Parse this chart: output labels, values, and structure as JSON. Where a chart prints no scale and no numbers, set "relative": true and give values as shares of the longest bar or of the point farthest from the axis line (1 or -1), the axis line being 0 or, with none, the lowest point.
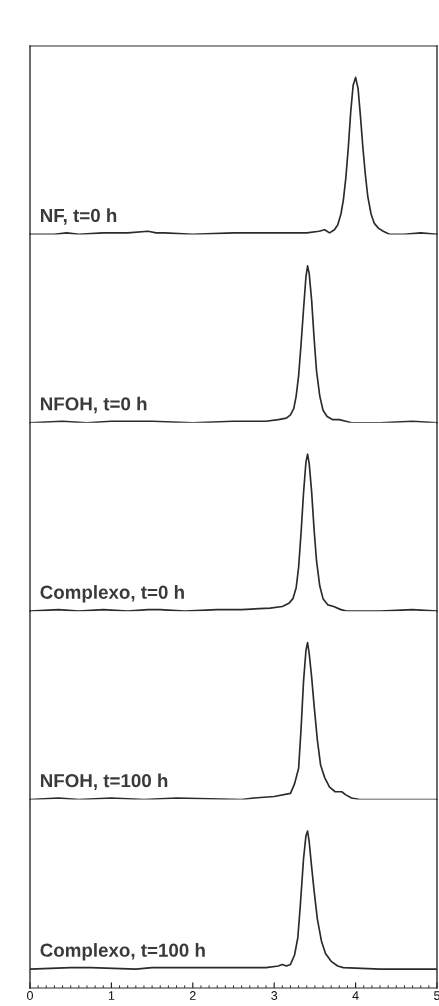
{
  "chart_data": [
    {
      "type": "line",
      "relative": true,
      "xlim": [
        0,
        5
      ],
      "tick_labels": false,
      "annotations": [
        "NF, t=0 h"
      ],
      "x": [
        0,
        0.3,
        0.45,
        0.6,
        0.9,
        1.2,
        1.45,
        1.55,
        1.65,
        2.0,
        2.5,
        3.0,
        3.4,
        3.55,
        3.62,
        3.68,
        3.74,
        3.78,
        3.82,
        3.85,
        3.88,
        3.91,
        3.94,
        3.97,
        4.0,
        4.03,
        4.06,
        4.09,
        4.12,
        4.15,
        4.19,
        4.23,
        4.28,
        4.34,
        4.42,
        4.6,
        4.8,
        5.0
      ],
      "series": [
        {
          "color": "#2b2b2b",
          "values": [
            0.0,
            0.0,
            0.01,
            0.0,
            0.01,
            0.01,
            0.02,
            0.01,
            0.01,
            0.0,
            0.01,
            0.01,
            0.01,
            0.02,
            0.03,
            0.01,
            0.03,
            0.06,
            0.13,
            0.22,
            0.36,
            0.55,
            0.78,
            0.95,
            1.0,
            0.93,
            0.75,
            0.55,
            0.38,
            0.24,
            0.13,
            0.07,
            0.04,
            0.02,
            0.0,
            0.0,
            0.01,
            0.0
          ]
        }
      ]
    },
    {
      "type": "line",
      "relative": true,
      "xlim": [
        0,
        5
      ],
      "tick_labels": false,
      "annotations": [
        "NFOH, t=0 h"
      ],
      "x": [
        0,
        0.4,
        0.7,
        1.0,
        1.5,
        2.0,
        2.5,
        2.9,
        3.05,
        3.15,
        3.2,
        3.24,
        3.27,
        3.3,
        3.33,
        3.36,
        3.39,
        3.41,
        3.43,
        3.46,
        3.49,
        3.52,
        3.56,
        3.6,
        3.65,
        3.72,
        3.8,
        3.88,
        3.95,
        4.3,
        4.7,
        5.0
      ],
      "series": [
        {
          "color": "#2b2b2b",
          "values": [
            0.0,
            0.01,
            0.0,
            0.01,
            0.01,
            0.0,
            0.01,
            0.01,
            0.02,
            0.03,
            0.05,
            0.09,
            0.17,
            0.3,
            0.5,
            0.72,
            0.93,
            1.0,
            0.95,
            0.78,
            0.54,
            0.33,
            0.17,
            0.08,
            0.04,
            0.02,
            0.02,
            0.01,
            0.0,
            0.0,
            0.01,
            0.0
          ]
        }
      ]
    },
    {
      "type": "line",
      "relative": true,
      "xlim": [
        0,
        5
      ],
      "tick_labels": false,
      "annotations": [
        "Complexo, t=0 h"
      ],
      "x": [
        0,
        0.35,
        0.6,
        0.9,
        1.2,
        1.45,
        1.6,
        1.9,
        2.3,
        2.6,
        2.95,
        3.1,
        3.18,
        3.23,
        3.27,
        3.3,
        3.33,
        3.36,
        3.39,
        3.41,
        3.43,
        3.46,
        3.49,
        3.52,
        3.56,
        3.6,
        3.66,
        3.73,
        3.82,
        3.9,
        4.3,
        4.7,
        5.0
      ],
      "series": [
        {
          "color": "#2b2b2b",
          "values": [
            0.0,
            0.01,
            0.0,
            0.01,
            0.0,
            0.01,
            0.01,
            0.0,
            0.01,
            0.01,
            0.02,
            0.03,
            0.05,
            0.08,
            0.15,
            0.28,
            0.5,
            0.75,
            0.95,
            1.0,
            0.94,
            0.76,
            0.52,
            0.32,
            0.16,
            0.08,
            0.04,
            0.03,
            0.01,
            0.0,
            0.0,
            0.01,
            0.0
          ]
        }
      ]
    },
    {
      "type": "line",
      "relative": true,
      "xlim": [
        0,
        5
      ],
      "tick_labels": false,
      "annotations": [
        "NFOH, t=100 h"
      ],
      "x": [
        0,
        0.35,
        0.6,
        1.0,
        1.4,
        1.8,
        2.6,
        2.75,
        3.0,
        3.2,
        3.25,
        3.3,
        3.33,
        3.36,
        3.39,
        3.41,
        3.43,
        3.46,
        3.49,
        3.53,
        3.57,
        3.62,
        3.68,
        3.75,
        3.83,
        3.88,
        3.95,
        4.05,
        4.5,
        5.0
      ],
      "series": [
        {
          "color": "#2b2b2b",
          "values": [
            0.0,
            0.01,
            0.0,
            0.01,
            0.0,
            0.01,
            0.0,
            0.01,
            0.02,
            0.04,
            0.1,
            0.2,
            0.45,
            0.75,
            0.95,
            1.0,
            0.93,
            0.78,
            0.6,
            0.38,
            0.22,
            0.14,
            0.08,
            0.05,
            0.05,
            0.03,
            0.01,
            0.0,
            0.0,
            0.0
          ]
        }
      ]
    },
    {
      "type": "line",
      "relative": true,
      "xlim": [
        0,
        5
      ],
      "tick_labels": "x",
      "annotations": [
        "Complexo, t=100 h"
      ],
      "xticks": [
        0,
        1,
        2,
        3,
        4,
        5,
        {
          "value": 0.1,
          "label": null
        },
        {
          "value": 0.2,
          "label": null
        },
        {
          "value": 0.3,
          "label": null
        },
        {
          "value": 0.4,
          "label": null
        },
        {
          "value": 0.5,
          "label": null
        },
        {
          "value": 0.6,
          "label": null
        },
        {
          "value": 0.7,
          "label": null
        },
        {
          "value": 0.8,
          "label": null
        },
        {
          "value": 0.9,
          "label": null
        },
        {
          "value": 1.1,
          "label": null
        },
        {
          "value": 1.2,
          "label": null
        },
        {
          "value": 1.3,
          "label": null
        },
        {
          "value": 1.4,
          "label": null
        },
        {
          "value": 1.5,
          "label": null
        },
        {
          "value": 1.6,
          "label": null
        },
        {
          "value": 1.7,
          "label": null
        },
        {
          "value": 1.8,
          "label": null
        },
        {
          "value": 1.9,
          "label": null
        },
        {
          "value": 2.1,
          "label": null
        },
        {
          "value": 2.2,
          "label": null
        },
        {
          "value": 2.3,
          "label": null
        },
        {
          "value": 2.4,
          "label": null
        },
        {
          "value": 2.5,
          "label": null
        },
        {
          "value": 2.6,
          "label": null
        },
        {
          "value": 2.7,
          "label": null
        },
        {
          "value": 2.8,
          "label": null
        },
        {
          "value": 2.9,
          "label": null
        },
        {
          "value": 3.1,
          "label": null
        },
        {
          "value": 3.2,
          "label": null
        },
        {
          "value": 3.3,
          "label": null
        },
        {
          "value": 3.4,
          "label": null
        },
        {
          "value": 3.5,
          "label": null
        },
        {
          "value": 3.6,
          "label": null
        },
        {
          "value": 3.7,
          "label": null
        },
        {
          "value": 3.8,
          "label": null
        },
        {
          "value": 3.9,
          "label": null
        },
        {
          "value": 4.1,
          "label": null
        },
        {
          "value": 4.2,
          "label": null
        },
        {
          "value": 4.3,
          "label": null
        },
        {
          "value": 4.4,
          "label": null
        },
        {
          "value": 4.5,
          "label": null
        },
        {
          "value": 4.6,
          "label": null
        },
        {
          "value": 4.7,
          "label": null
        },
        {
          "value": 4.8,
          "label": null
        },
        {
          "value": 4.9,
          "label": null
        }
      ],
      "x": [
        0,
        0.5,
        0.75,
        1.3,
        1.5,
        2.0,
        2.9,
        3.05,
        3.1,
        3.15,
        3.2,
        3.25,
        3.29,
        3.32,
        3.36,
        3.39,
        3.41,
        3.43,
        3.46,
        3.49,
        3.53,
        3.58,
        3.63,
        3.7,
        3.78,
        3.85,
        4.3,
        5.0
      ],
      "series": [
        {
          "color": "#2b2b2b",
          "values": [
            0.12,
            0.13,
            0.13,
            0.12,
            0.13,
            0.13,
            0.13,
            0.14,
            0.15,
            0.14,
            0.15,
            0.21,
            0.32,
            0.52,
            0.82,
            0.97,
            1.0,
            0.93,
            0.77,
            0.62,
            0.44,
            0.3,
            0.22,
            0.17,
            0.14,
            0.13,
            0.12,
            0.12
          ]
        }
      ]
    }
  ]
}
